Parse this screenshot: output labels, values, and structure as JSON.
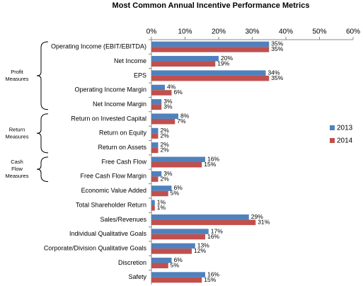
{
  "chart_data": {
    "type": "bar",
    "orientation": "horizontal",
    "title": "Most Common Annual Incentive Performance Metrics",
    "categories": [
      "Operating Income (EBIT/EBITDA)",
      "Net Income",
      "EPS",
      "Operating Income Margin",
      "Net Income Margin",
      "Return on Invested Capital",
      "Return on Equity",
      "Return on Assets",
      "Free Cash Flow",
      "Free Cash Flow Margin",
      "Economic Value Added",
      "Total Shareholder Return",
      "Sales/Revenues",
      "Individual Qualitative Goals",
      "Corporate/Division Qualitative Goals",
      "Discretion",
      "Safety"
    ],
    "series": [
      {
        "name": "2013",
        "color": "#4f81bd",
        "values": [
          35,
          20,
          34,
          4,
          3,
          8,
          2,
          2,
          16,
          3,
          6,
          1,
          29,
          17,
          13,
          6,
          16
        ],
        "value_labels": [
          "35%",
          "20%",
          "34%",
          "4%",
          "3%",
          "8%",
          "2%",
          "2%",
          "16%",
          "3%",
          "6%",
          "1%",
          "29%",
          "17%",
          "13%",
          "6%",
          "16%"
        ]
      },
      {
        "name": "2014",
        "color": "#c0504d",
        "values": [
          35,
          19,
          35,
          6,
          3,
          7,
          2,
          2,
          15,
          2,
          5,
          1,
          31,
          16,
          12,
          5,
          15
        ],
        "value_labels": [
          "35%",
          "19%",
          "35%",
          "6%",
          "3%",
          "7%",
          "2%",
          "2%",
          "15%",
          "2%",
          "5%",
          "1%",
          "31%",
          "16%",
          "12%",
          "5%",
          "15%"
        ]
      }
    ],
    "xlim": [
      0,
      60
    ],
    "xticks": [
      {
        "value": 0,
        "label": "0%"
      },
      {
        "value": 10,
        "label": "10%"
      },
      {
        "value": 20,
        "label": "20%"
      },
      {
        "value": 30,
        "label": "30%"
      },
      {
        "value": 40,
        "label": "40%"
      },
      {
        "value": 50,
        "label": "50%"
      },
      {
        "value": 60,
        "label": "60%"
      }
    ],
    "group_labels": [
      [
        "Profit",
        "Measures"
      ],
      [
        "Return",
        "Measures"
      ],
      [
        "Cash",
        "Flow",
        "Measures"
      ]
    ],
    "legend": "right"
  }
}
